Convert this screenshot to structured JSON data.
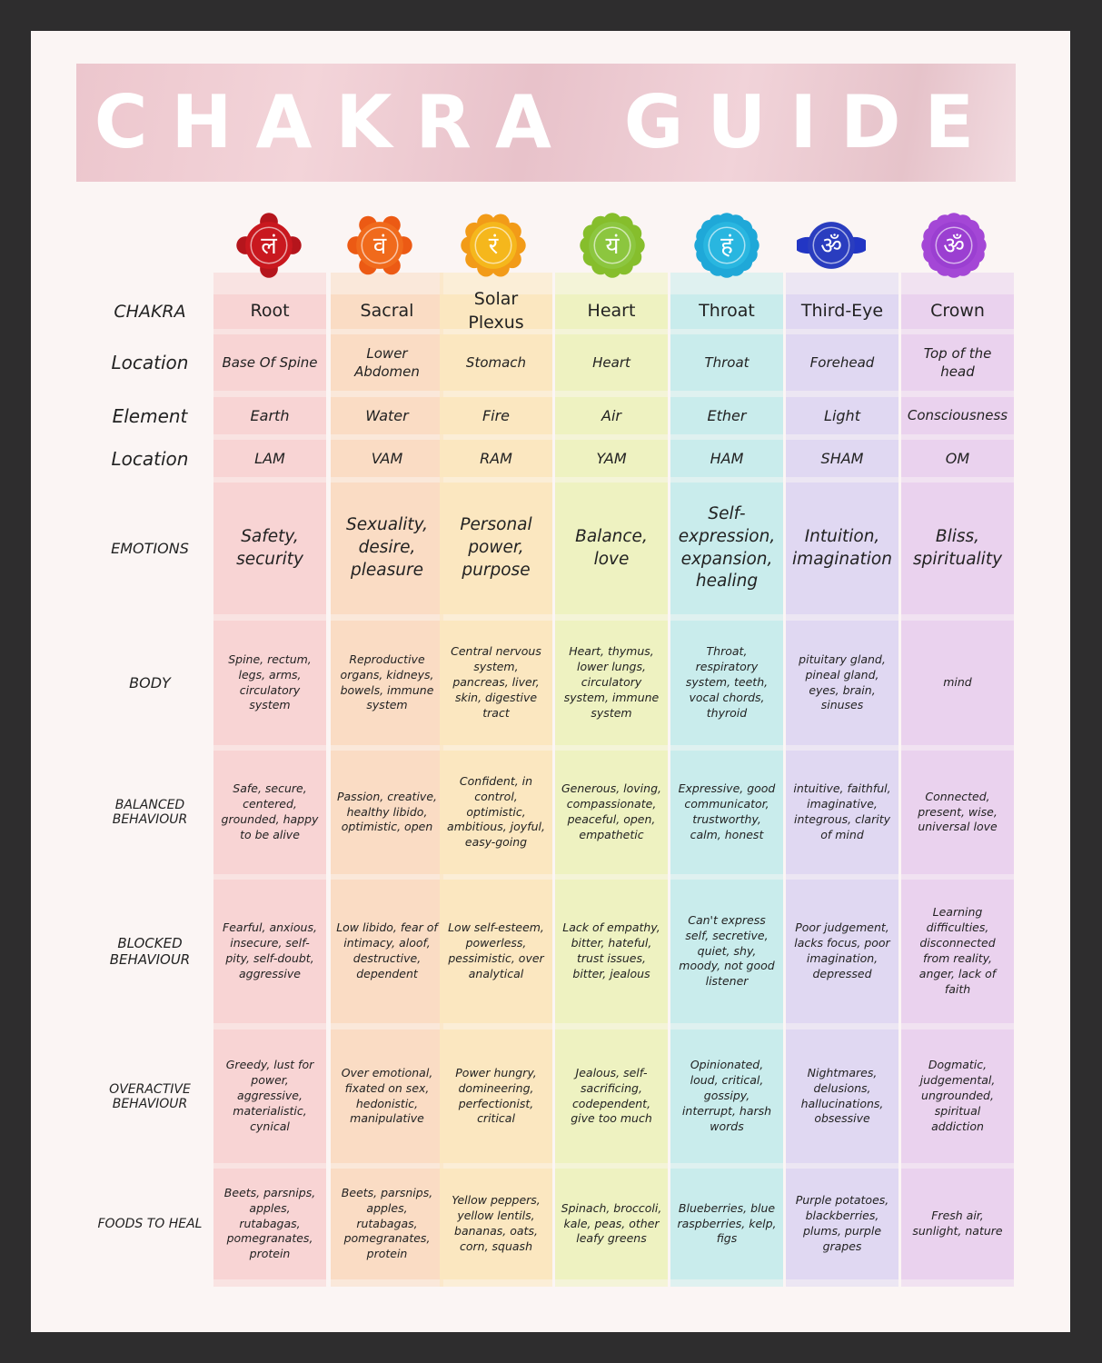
{
  "title": "CHAKRA GUIDE",
  "chakras": [
    {
      "name": "Root",
      "glyph": "लं",
      "color": "#c9181f",
      "petal": "#b5151c",
      "cell": "#f8d4d4",
      "location": "Base Of Spine",
      "element": "Earth",
      "mantra": "LAM",
      "emotions": "Safety, security",
      "body": "Spine, rectum, legs, arms, circulatory system",
      "balanced": "Safe, secure, centered, grounded, happy to be alive",
      "blocked": "Fearful, anxious, insecure, self-pity, self-doubt, aggressive",
      "overactive": "Greedy, lust for power, aggressive, materialistic, cynical",
      "foods": "Beets, parsnips, apples, rutabagas, pomegranates, protein"
    },
    {
      "name": "Sacral",
      "glyph": "वं",
      "color": "#f06a1c",
      "petal": "#ec5a14",
      "cell": "#fadcc4",
      "location": "Lower Abdomen",
      "element": "Water",
      "mantra": "VAM",
      "emotions": "Sexuality, desire, pleasure",
      "body": "Reproductive organs, kidneys, bowels, immune system",
      "balanced": "Passion, creative, healthy libido, optimistic, open",
      "blocked": "Low libido, fear of intimacy, aloof, destructive, dependent",
      "overactive": "Over emotional, fixated on sex, hedonistic, manipulative",
      "foods": "Beets, parsnips, apples, rutabagas, pomegranates, protein"
    },
    {
      "name": "Solar Plexus",
      "glyph": "रं",
      "color": "#f5b71c",
      "petal": "#f29b18",
      "cell": "#fbe7c0",
      "location": "Stomach",
      "element": "Fire",
      "mantra": "RAM",
      "emotions": "Personal power, purpose",
      "body": "Central nervous system, pancreas, liver, skin, digestive tract",
      "balanced": "Confident, in control, optimistic, ambitious, joyful, easy-going",
      "blocked": "Low self-esteem, powerless, pessimistic, over analytical",
      "overactive": "Power hungry, domineering, perfectionist, critical",
      "foods": "Yellow peppers, yellow lentils, bananas, oats, corn, squash"
    },
    {
      "name": "Heart",
      "glyph": "यं",
      "color": "#8cc63f",
      "petal": "#86be2c",
      "cell": "#eef2c1",
      "location": "Heart",
      "element": "Air",
      "mantra": "YAM",
      "emotions": "Balance, love",
      "body": "Heart, thymus, lower lungs, circulatory system, immune system",
      "balanced": "Generous, loving, compassionate, peaceful, open, empathetic",
      "blocked": "Lack of empathy, bitter, hateful, trust issues, bitter, jealous",
      "overactive": "Jealous, self-sacrificing, codependent, give too much",
      "foods": "Spinach, broccoli, kale, peas, other leafy greens"
    },
    {
      "name": "Throat",
      "glyph": "हं",
      "color": "#29b6e0",
      "petal": "#1fa8d8",
      "cell": "#c9ecec",
      "location": "Throat",
      "element": "Ether",
      "mantra": "HAM",
      "emotions": "Self-expression, expansion, healing",
      "body": "Throat, respiratory system, teeth, vocal chords, thyroid",
      "balanced": "Expressive, good communicator, trustworthy, calm, honest",
      "blocked": "Can't express self, secretive, quiet, shy, moody, not good listener",
      "overactive": "Opinionated, loud, critical, gossipy, interrupt, harsh words",
      "foods": "Blueberries, blue raspberries, kelp, figs"
    },
    {
      "name": "Third-Eye",
      "glyph": "ॐ",
      "color": "#2a3dbf",
      "petal": "#2236c4",
      "cell": "#e0d8f2",
      "location": "Forehead",
      "element": "Light",
      "mantra": "SHAM",
      "emotions": "Intuition, imagination",
      "body": "pituitary gland, pineal gland, eyes, brain, sinuses",
      "balanced": "intuitive, faithful, imaginative, integrous, clarity of mind",
      "blocked": "Poor judgement, lacks focus, poor imagination, depressed",
      "overactive": "Nightmares, delusions, hallucinations, obsessive",
      "foods": "Purple potatoes, blackberries, plums, purple grapes"
    },
    {
      "name": "Crown",
      "glyph": "ॐ",
      "color": "#9b3fd1",
      "petal": "#a447d6",
      "cell": "#ead2ee",
      "location": "Top of the head",
      "element": "Consciousness",
      "mantra": "OM",
      "emotions": "Bliss, spirituality",
      "body": "mind",
      "balanced": "Connected, present, wise, universal love",
      "blocked": "Learning difficulties, disconnected from reality, anger, lack of faith",
      "overactive": "Dogmatic, judgemental, ungrounded, spiritual addiction",
      "foods": "Fresh air, sunlight, nature"
    }
  ],
  "row_labels": {
    "chakra": "CHAKRA",
    "location": "Location",
    "element": "Element",
    "mantra": "Location",
    "emotions": "EMOTIONS",
    "body": "BODY",
    "balanced": "BALANCED BEHAVIOUR",
    "blocked": "BLOCKED BEHAVIOUR",
    "overactive": "OVERACTIVE BEHAVIOUR",
    "foods": "FOODS TO HEAL"
  }
}
